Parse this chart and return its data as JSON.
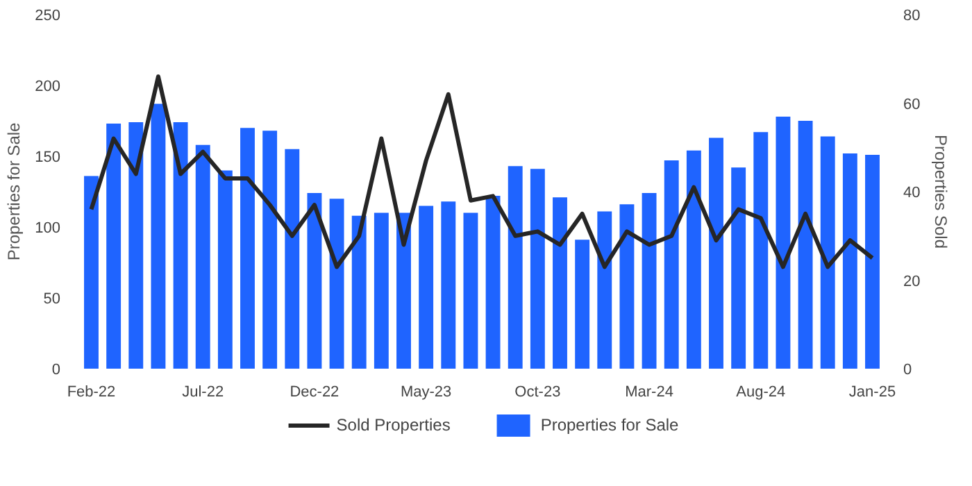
{
  "chart_data": {
    "type": "bar",
    "categories": [
      "Feb-22",
      null,
      null,
      null,
      null,
      "Jul-22",
      null,
      null,
      null,
      null,
      "Dec-22",
      null,
      null,
      null,
      null,
      "May-23",
      null,
      null,
      null,
      null,
      "Oct-23",
      null,
      null,
      null,
      null,
      "Mar-24",
      null,
      null,
      null,
      null,
      "Aug-24",
      null,
      null,
      null,
      null,
      "Jan-25"
    ],
    "ylabel": "Properties for Sale",
    "y2label": "Properties Sold",
    "ylim": [
      0,
      250
    ],
    "yticks": [
      0,
      50,
      100,
      150,
      200,
      250
    ],
    "y2lim": [
      0,
      80
    ],
    "y2ticks": [
      0,
      20,
      40,
      60,
      80
    ],
    "grid": false,
    "legend": "bottom",
    "series": [
      {
        "name": "Sold Properties",
        "type": "line",
        "axis": "y2",
        "color": "#262626",
        "values": [
          36,
          52,
          44,
          66,
          44,
          49,
          43,
          43,
          37,
          30,
          37,
          23,
          30,
          52,
          28,
          47,
          62,
          38,
          39,
          30,
          31,
          28,
          35,
          23,
          31,
          28,
          30,
          41,
          29,
          36,
          34,
          23,
          35,
          23,
          29,
          25
        ]
      },
      {
        "name": "Properties for Sale",
        "type": "bar",
        "color": "#1f64ff",
        "values": [
          136,
          173,
          174,
          187,
          174,
          158,
          140,
          170,
          168,
          155,
          124,
          120,
          108,
          110,
          110,
          115,
          118,
          110,
          122,
          143,
          141,
          121,
          91,
          111,
          116,
          124,
          147,
          154,
          163,
          142,
          167,
          178,
          175,
          164,
          152,
          151
        ]
      }
    ]
  }
}
